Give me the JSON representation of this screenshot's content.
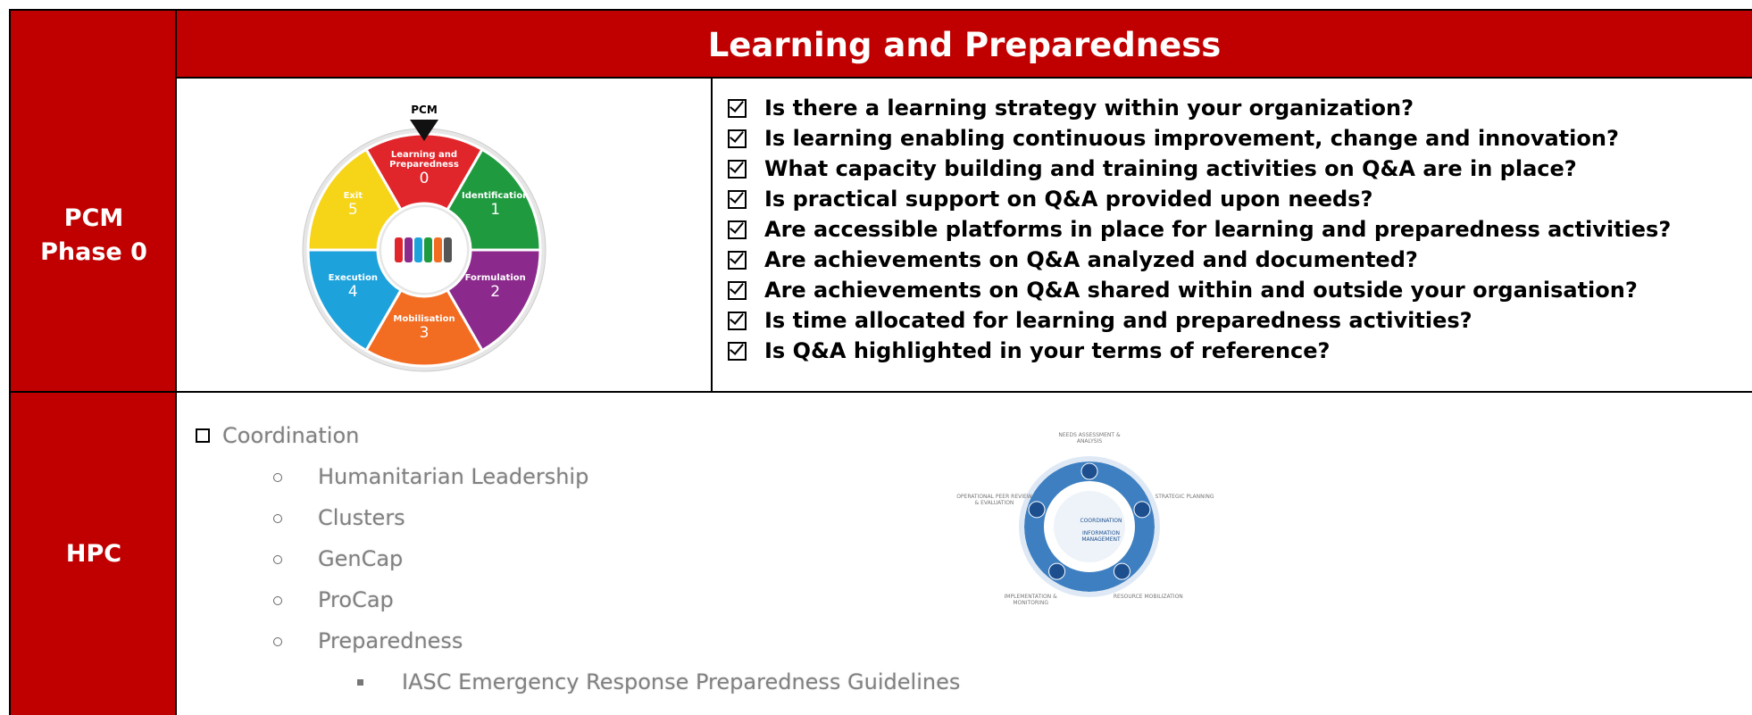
{
  "header": {
    "title": "Learning and Preparedness"
  },
  "pcm": {
    "label": [
      "PCM",
      "Phase 0"
    ],
    "wheel": {
      "pointer": "PCM",
      "segments": [
        {
          "name": "Learning and Preparedness",
          "number": 0
        },
        {
          "name": "Identification",
          "number": 1
        },
        {
          "name": "Formulation",
          "number": 2
        },
        {
          "name": "Mobilisation",
          "number": 3
        },
        {
          "name": "Execution",
          "number": 4
        },
        {
          "name": "Exit",
          "number": 5
        }
      ]
    },
    "questions": [
      "Is there a learning strategy within your organization?",
      "Is learning enabling continuous improvement, change and innovation?",
      "What capacity building and training activities on Q&A are in place?",
      "Is practical support on Q&A provided upon needs?",
      "Are accessible platforms in place for learning and preparedness activities?",
      "Are achievements on Q&A analyzed and documented?",
      "Are achievements on Q&A shared within and outside your organisation?",
      "Is time allocated for learning and preparedness activities?",
      "Is Q&A highlighted in your terms of reference?"
    ]
  },
  "hpc": {
    "label": "HPC",
    "items": [
      {
        "text": "Coordination",
        "children": [
          {
            "text": "Humanitarian Leadership"
          },
          {
            "text": "Clusters"
          },
          {
            "text": "GenCap"
          },
          {
            "text": "ProCap"
          },
          {
            "text": "Preparedness",
            "children": [
              {
                "text": "IASC Emergency Response Preparedness Guidelines"
              }
            ]
          }
        ]
      }
    ],
    "cycle": {
      "center": [
        "COORDINATION",
        "INFORMATION MANAGEMENT"
      ],
      "stages": [
        "NEEDS ASSESSMENT & ANALYSIS",
        "STRATEGIC PLANNING",
        "RESOURCE MOBILIZATION",
        "IMPLEMENTATION & MONITORING",
        "OPERATIONAL PEER REVIEW & EVALUATION"
      ]
    }
  }
}
